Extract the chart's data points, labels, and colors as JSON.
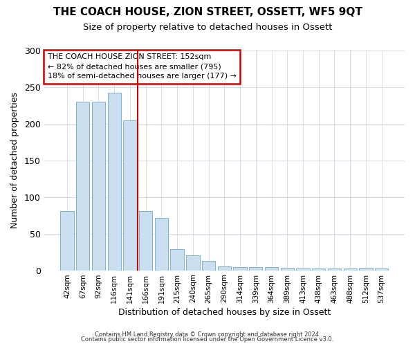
{
  "title": "THE COACH HOUSE, ZION STREET, OSSETT, WF5 9QT",
  "subtitle": "Size of property relative to detached houses in Ossett",
  "xlabel": "Distribution of detached houses by size in Ossett",
  "ylabel": "Number of detached properties",
  "bar_color": "#c9dff0",
  "bar_edge_color": "#7ab3d4",
  "categories": [
    "42sqm",
    "67sqm",
    "92sqm",
    "116sqm",
    "141sqm",
    "166sqm",
    "191sqm",
    "215sqm",
    "240sqm",
    "265sqm",
    "290sqm",
    "314sqm",
    "339sqm",
    "364sqm",
    "389sqm",
    "413sqm",
    "438sqm",
    "463sqm",
    "488sqm",
    "512sqm",
    "537sqm"
  ],
  "values": [
    81,
    230,
    230,
    242,
    204,
    81,
    71,
    29,
    20,
    13,
    5,
    4,
    4,
    4,
    3,
    2,
    2,
    2,
    2,
    3,
    2
  ],
  "red_line_x": 4.5,
  "annotation_title": "THE COACH HOUSE ZION STREET: 152sqm",
  "annotation_line1": "← 82% of detached houses are smaller (795)",
  "annotation_line2": "18% of semi-detached houses are larger (177) →",
  "annotation_box_color": "#ffffff",
  "annotation_border_color": "#cc0000",
  "red_line_color": "#cc0000",
  "footer1": "Contains HM Land Registry data © Crown copyright and database right 2024.",
  "footer2": "Contains public sector information licensed under the Open Government Licence v3.0.",
  "ylim": [
    0,
    300
  ],
  "yticks": [
    0,
    50,
    100,
    150,
    200,
    250,
    300
  ],
  "background_color": "#ffffff",
  "plot_background": "#ffffff"
}
